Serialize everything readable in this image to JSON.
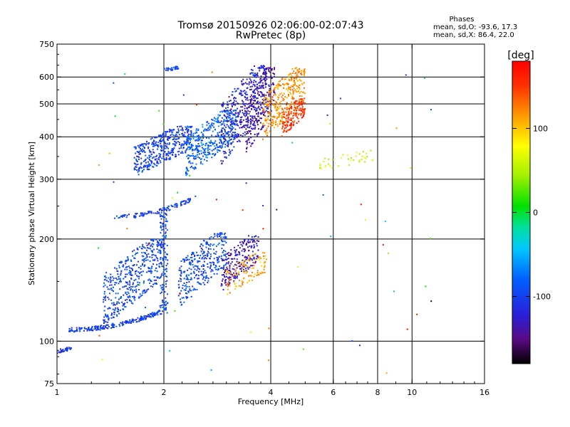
{
  "chart_data": {
    "type": "scatter",
    "title": "Tromsø 20150926 02:06:00-02:07:43",
    "subtitle": "RwPretec (8p)",
    "xlabel": "Frequency [MHz]",
    "ylabel": "Stationary phase Virtual Height [km]",
    "x_scale": "log2",
    "y_scale": "log",
    "xlim": [
      1,
      16
    ],
    "ylim": [
      75,
      750
    ],
    "x_ticks": [
      1,
      2,
      4,
      6,
      8,
      10,
      16
    ],
    "x_tick_labels": [
      "1",
      "2",
      "4",
      "6",
      "8",
      "10",
      "16"
    ],
    "y_ticks": [
      75,
      100,
      200,
      300,
      400,
      500,
      600,
      750
    ],
    "y_tick_labels": [
      "75",
      "100",
      "200",
      "300",
      "400",
      "500",
      "600",
      "750"
    ],
    "x_gridlines": [
      2,
      4,
      6,
      8,
      10
    ],
    "y_gridlines": [
      100,
      200,
      300,
      400,
      500,
      600
    ],
    "grid": true,
    "phase_stats": {
      "header": "Phases",
      "line_o": "mean, sd,O: -93.6, 17.3",
      "line_x": "mean, sd,X:  86.4, 22.0"
    },
    "colorbar": {
      "label": "[deg]",
      "range": [
        -180,
        180
      ],
      "ticks": [
        -100,
        0,
        100
      ],
      "tick_labels": [
        "-100",
        "0",
        "100"
      ]
    },
    "traces": [
      {
        "phase": -100,
        "x_range": [
          1.08,
          1.95
        ],
        "y_range": [
          108,
          122
        ],
        "n": 220,
        "mode": "curve"
      },
      {
        "phase": -95,
        "x_range": [
          1.35,
          2.0
        ],
        "y_range": [
          110,
          200
        ],
        "n": 450,
        "mode": "cloud"
      },
      {
        "phase": -95,
        "x_range": [
          1.95,
          2.05
        ],
        "y_range": [
          120,
          240
        ],
        "n": 130,
        "mode": "column"
      },
      {
        "phase": -100,
        "x_range": [
          1.45,
          2.4
        ],
        "y_range": [
          232,
          262
        ],
        "n": 110,
        "mode": "curve"
      },
      {
        "phase": -95,
        "x_range": [
          2.2,
          3.0
        ],
        "y_range": [
          125,
          210
        ],
        "n": 320,
        "mode": "cloud"
      },
      {
        "phase": -130,
        "x_range": [
          2.9,
          3.7
        ],
        "y_range": [
          140,
          205
        ],
        "n": 220,
        "mode": "cloud"
      },
      {
        "phase": 110,
        "x_range": [
          3.0,
          3.9
        ],
        "y_range": [
          135,
          185
        ],
        "n": 110,
        "mode": "cloud"
      },
      {
        "phase": -100,
        "x_range": [
          1.65,
          2.4
        ],
        "y_range": [
          305,
          430
        ],
        "n": 420,
        "mode": "cloud"
      },
      {
        "phase": -80,
        "x_range": [
          2.3,
          3.2
        ],
        "y_range": [
          305,
          480
        ],
        "n": 380,
        "mode": "cloud"
      },
      {
        "phase": -120,
        "x_range": [
          2.9,
          3.9
        ],
        "y_range": [
          330,
          650
        ],
        "n": 420,
        "mode": "cloud"
      },
      {
        "phase": -140,
        "x_range": [
          3.4,
          4.1
        ],
        "y_range": [
          350,
          640
        ],
        "n": 200,
        "mode": "cloud"
      },
      {
        "phase": 120,
        "x_range": [
          3.8,
          5.0
        ],
        "y_range": [
          390,
          640
        ],
        "n": 330,
        "mode": "cloud"
      },
      {
        "phase": 150,
        "x_range": [
          4.3,
          5.0
        ],
        "y_range": [
          400,
          520
        ],
        "n": 150,
        "mode": "cloud"
      },
      {
        "phase": -100,
        "x_range": [
          2.0,
          2.2
        ],
        "y_range": [
          620,
          645
        ],
        "n": 30,
        "mode": "cloud"
      },
      {
        "phase": -100,
        "x_range": [
          1.0,
          1.1
        ],
        "y_range": [
          92,
          96
        ],
        "n": 35,
        "mode": "cloud"
      },
      {
        "phase": 60,
        "x_range": [
          5.5,
          7.8
        ],
        "y_range": [
          315,
          365
        ],
        "n": 40,
        "mode": "cloud"
      },
      {
        "phase": 0,
        "x_range": [
          1.3,
          12.0
        ],
        "y_range": [
          80,
          650
        ],
        "n": 70,
        "mode": "scatter"
      }
    ]
  }
}
